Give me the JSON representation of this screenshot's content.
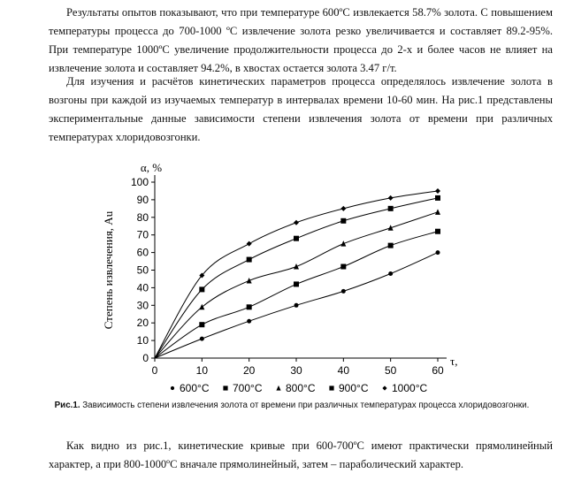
{
  "text": {
    "p1": "Результаты опытов показывают, что при температуре 600ºС извлекается 58.7% золота. С повышением температуры процесса до 700-1000 ºС извлечение золота резко увеличивается и составляет 89.2-95%. При температуре 1000ºС увеличение продолжительности процесса до 2-х и более часов не влияет на извлечение золота и составляет 94.2%, в хвостах остается золота 3.47 г/т.",
    "p2": "Для изучения и расчётов кинетических параметров процесса определялось извлечение золота в возгоны при каждой из изучаемых температур в интервалах времени 10-60 мин. На рис.1 представлены экспериментальные данные зависимости степени извлечения золота от времени при различных температурах хлоридовозгонки.",
    "p3": "Как видно из рис.1, кинетические кривые при 600-700ºС имеют практически прямолинейный характер, а при 800-1000ºС вначале прямолинейный, затем – параболический характер.",
    "caption_label": "Рис.1.",
    "caption_text": " Зависимость степени извлечения золота от времени при различных температурах процесса хлоридовозгонки."
  },
  "chart_data": {
    "type": "scatter",
    "ylabel_top": "α, %",
    "ylabel": "Степень извлечения, Au",
    "xlabel": "τ, мин",
    "xlim": [
      0,
      60
    ],
    "ylim": [
      0,
      100
    ],
    "x_ticks": [
      0,
      10,
      20,
      30,
      40,
      50,
      60
    ],
    "y_ticks": [
      0,
      10,
      20,
      30,
      40,
      50,
      60,
      70,
      80,
      90,
      100
    ],
    "legend_position": "bottom",
    "series": [
      {
        "name": "600°C",
        "marker": "circle",
        "x": [
          10,
          20,
          30,
          40,
          50,
          60
        ],
        "y": [
          11,
          21,
          30,
          38,
          48,
          60
        ]
      },
      {
        "name": "700°C",
        "marker": "square",
        "x": [
          10,
          20,
          30,
          40,
          50,
          60
        ],
        "y": [
          19,
          29,
          42,
          52,
          64,
          72
        ]
      },
      {
        "name": "800°C",
        "marker": "triangle",
        "x": [
          10,
          20,
          30,
          40,
          50,
          60
        ],
        "y": [
          29,
          44,
          52,
          65,
          74,
          83
        ]
      },
      {
        "name": "900°C",
        "marker": "square",
        "x": [
          10,
          20,
          30,
          40,
          50,
          60
        ],
        "y": [
          39,
          56,
          68,
          78,
          85,
          91
        ]
      },
      {
        "name": "1000°C",
        "marker": "diamond",
        "x": [
          10,
          20,
          30,
          40,
          50,
          60
        ],
        "y": [
          47,
          65,
          77,
          85,
          91,
          95
        ]
      }
    ]
  }
}
